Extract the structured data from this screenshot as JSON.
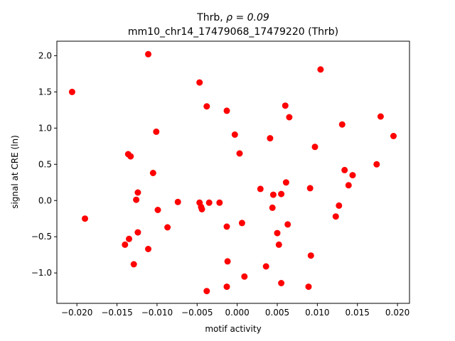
{
  "chart_data": {
    "type": "scatter",
    "title_prefix": "Thrb, ",
    "title_rho": "ρ = 0.09",
    "subtitle": "mm10_chr14_17479068_17479220 (Thrb)",
    "xlabel": "motif activity",
    "ylabel": "signal at CRE (ln)",
    "xlim": [
      -0.0225,
      0.0215
    ],
    "ylim": [
      -1.42,
      2.2
    ],
    "xticks": [
      -0.02,
      -0.015,
      -0.01,
      -0.005,
      0.0,
      0.005,
      0.01,
      0.015,
      0.02
    ],
    "xtick_labels": [
      "−0.020",
      "−0.015",
      "−0.010",
      "−0.005",
      "0.000",
      "0.005",
      "0.010",
      "0.015",
      "0.020"
    ],
    "yticks": [
      -1.0,
      -0.5,
      0.0,
      0.5,
      1.0,
      1.5,
      2.0
    ],
    "ytick_labels": [
      "−1.0",
      "−0.5",
      "0.0",
      "0.5",
      "1.0",
      "1.5",
      "2.0"
    ],
    "point_color": "#ff0000",
    "points": [
      {
        "x": -0.0206,
        "y": 1.5
      },
      {
        "x": -0.019,
        "y": -0.25
      },
      {
        "x": -0.014,
        "y": -0.61
      },
      {
        "x": -0.0136,
        "y": 0.64
      },
      {
        "x": -0.0135,
        "y": -0.53
      },
      {
        "x": -0.0133,
        "y": 0.61
      },
      {
        "x": -0.0129,
        "y": -0.88
      },
      {
        "x": -0.0126,
        "y": 0.01
      },
      {
        "x": -0.0124,
        "y": 0.11
      },
      {
        "x": -0.0124,
        "y": -0.44
      },
      {
        "x": -0.0111,
        "y": 2.02
      },
      {
        "x": -0.0111,
        "y": -0.67
      },
      {
        "x": -0.0105,
        "y": 0.38
      },
      {
        "x": -0.0101,
        "y": 0.95
      },
      {
        "x": -0.0099,
        "y": -0.13
      },
      {
        "x": -0.0087,
        "y": -0.37
      },
      {
        "x": -0.0074,
        "y": -0.02
      },
      {
        "x": -0.0047,
        "y": 1.63
      },
      {
        "x": -0.0047,
        "y": -0.03
      },
      {
        "x": -0.0045,
        "y": -0.09
      },
      {
        "x": -0.0044,
        "y": -0.12
      },
      {
        "x": -0.0038,
        "y": 1.3
      },
      {
        "x": -0.0038,
        "y": -1.25
      },
      {
        "x": -0.0035,
        "y": -0.03
      },
      {
        "x": -0.0022,
        "y": -0.03
      },
      {
        "x": -0.0013,
        "y": 1.24
      },
      {
        "x": -0.0013,
        "y": -0.36
      },
      {
        "x": -0.0012,
        "y": -0.84
      },
      {
        "x": -0.0013,
        "y": -1.19
      },
      {
        "x": -0.0003,
        "y": 0.91
      },
      {
        "x": 0.0003,
        "y": 0.65
      },
      {
        "x": 0.0006,
        "y": -0.31
      },
      {
        "x": 0.0009,
        "y": -1.05
      },
      {
        "x": 0.0029,
        "y": 0.16
      },
      {
        "x": 0.0036,
        "y": -0.91
      },
      {
        "x": 0.0041,
        "y": 0.86
      },
      {
        "x": 0.0044,
        "y": -0.1
      },
      {
        "x": 0.0045,
        "y": 0.08
      },
      {
        "x": 0.005,
        "y": -0.45
      },
      {
        "x": 0.0052,
        "y": -0.61
      },
      {
        "x": 0.0055,
        "y": 0.09
      },
      {
        "x": 0.0055,
        "y": -1.14
      },
      {
        "x": 0.006,
        "y": 1.31
      },
      {
        "x": 0.0061,
        "y": 0.25
      },
      {
        "x": 0.0063,
        "y": -0.33
      },
      {
        "x": 0.0065,
        "y": 1.15
      },
      {
        "x": 0.0089,
        "y": -1.19
      },
      {
        "x": 0.0091,
        "y": 0.17
      },
      {
        "x": 0.0092,
        "y": -0.76
      },
      {
        "x": 0.0097,
        "y": 0.74
      },
      {
        "x": 0.0104,
        "y": 1.81
      },
      {
        "x": 0.0123,
        "y": -0.22
      },
      {
        "x": 0.0127,
        "y": -0.07
      },
      {
        "x": 0.0131,
        "y": 1.05
      },
      {
        "x": 0.0134,
        "y": 0.42
      },
      {
        "x": 0.0139,
        "y": 0.21
      },
      {
        "x": 0.0144,
        "y": 0.35
      },
      {
        "x": 0.0174,
        "y": 0.5
      },
      {
        "x": 0.0179,
        "y": 1.16
      },
      {
        "x": 0.0195,
        "y": 0.89
      }
    ]
  }
}
